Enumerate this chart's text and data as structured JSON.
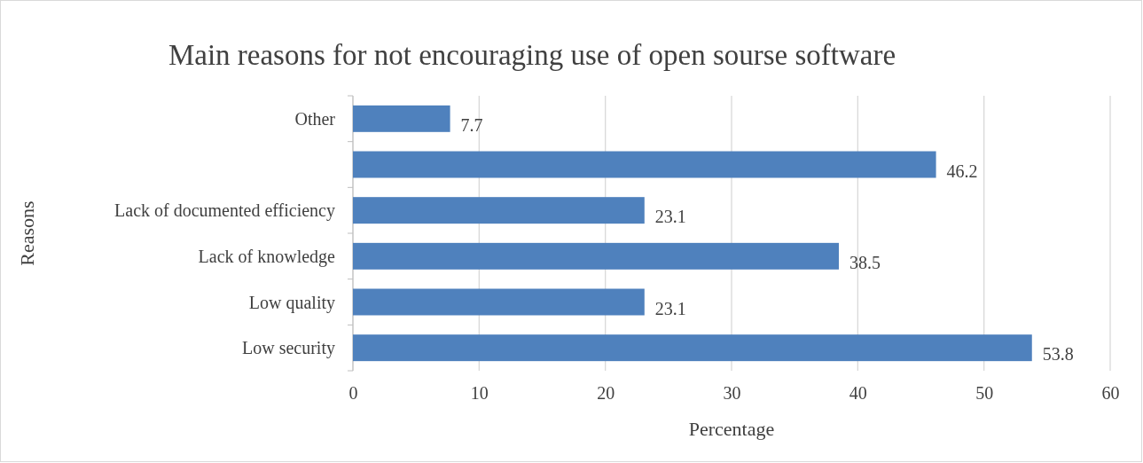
{
  "chart_data": {
    "type": "bar",
    "orientation": "horizontal",
    "title": "Main reasons for not encouraging use of open sourse software",
    "xlabel": "Percentage",
    "ylabel": "Reasons",
    "categories": [
      "Other",
      null,
      "Lack of documented efficiency",
      "Lack of knowledge",
      "Low quality",
      "Low security"
    ],
    "values": [
      7.7,
      46.2,
      23.1,
      38.5,
      23.1,
      53.8
    ],
    "color": "#4f81bd",
    "data_labels": true,
    "grid": "x",
    "xlim": [
      0,
      60
    ],
    "xticks": [
      0,
      10,
      20,
      30,
      40,
      50,
      60
    ]
  }
}
